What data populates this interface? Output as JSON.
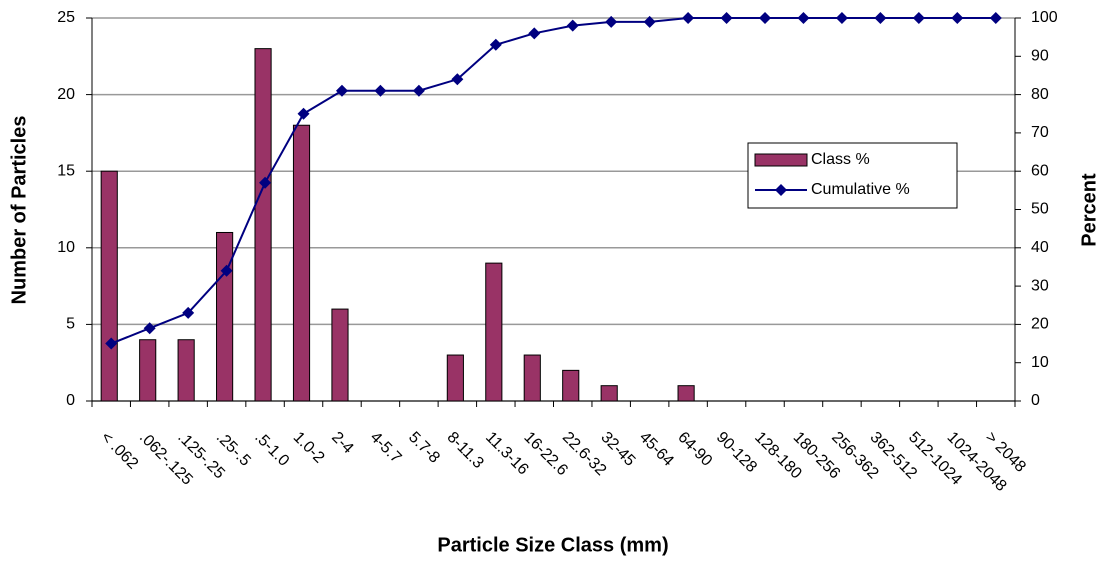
{
  "chart_data": {
    "type": "bar",
    "x_label": "Particle Size Class (mm)",
    "y_label": "Number of Particles",
    "y2_label": "Percent",
    "categories": [
      "< .062",
      ".062-.125",
      ".125-.25",
      ".25-.5",
      ".5-1.0",
      "1.0-2",
      "2-4",
      "4-5.7",
      "5.7-8",
      "8-11.3",
      "11.3-16",
      "16-22.6",
      "22.6-32",
      "32-45",
      "45-64",
      "64-90",
      "90-128",
      "128-180",
      "180-256",
      "256-362",
      "362-512",
      "512-1024",
      "1024-2048",
      "> 2048"
    ],
    "series": [
      {
        "name": "Class %",
        "type": "bar",
        "color": "#993366",
        "values": [
          15,
          4,
          4,
          11,
          23,
          18,
          6,
          0,
          0,
          3,
          9,
          3,
          2,
          1,
          0,
          1,
          0,
          0,
          0,
          0,
          0,
          0,
          0,
          0
        ]
      },
      {
        "name": "Cumulative %",
        "type": "line",
        "axis": "y2",
        "color": "#000080",
        "values": [
          15,
          19,
          23,
          34,
          57,
          75,
          81,
          81,
          81,
          84,
          93,
          96,
          98,
          99,
          99,
          100,
          100,
          100,
          100,
          100,
          100,
          100,
          100,
          100
        ]
      }
    ],
    "ylim": [
      0,
      25
    ],
    "yticks": [
      0,
      5,
      10,
      15,
      20,
      25
    ],
    "y2lim": [
      0,
      100
    ],
    "y2ticks": [
      0,
      10,
      20,
      30,
      40,
      50,
      60,
      70,
      80,
      90,
      100
    ],
    "grid": true,
    "legend": "right"
  }
}
